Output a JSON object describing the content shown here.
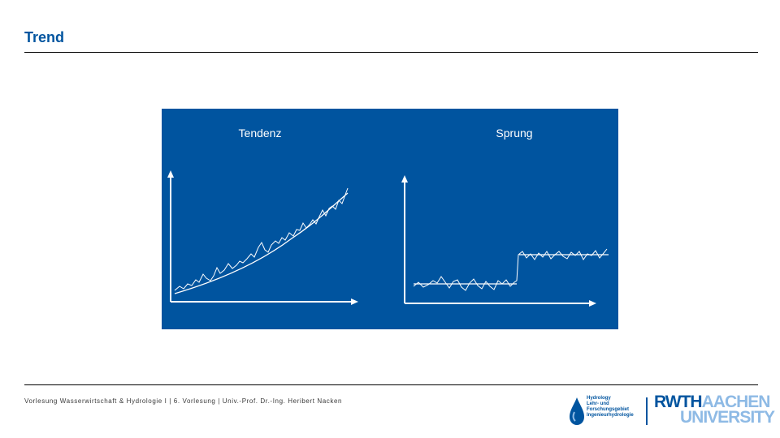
{
  "slide": {
    "title": "Trend",
    "footer": "Vorlesung Wasserwirtschaft & Hydrologie I | 6. Vorlesung | Univ.-Prof. Dr.-Ing. Heribert Nacken"
  },
  "diagram": {
    "panel_color": "#00549f",
    "line_color": "#ffffff",
    "left_label": "Tendenz",
    "right_label": "Sprung"
  },
  "logos": {
    "hydro_lines": [
      "Hydrology",
      "Lehr- und",
      "Forschungsgebiet",
      "Ingenieurhydrologie"
    ],
    "rwth_part1": "RWTH",
    "rwth_part2": "AACHEN",
    "rwth_line2": "UNIVERSITY",
    "rwth_color": "#00549f",
    "rwth_light_color": "#8ebae5"
  }
}
